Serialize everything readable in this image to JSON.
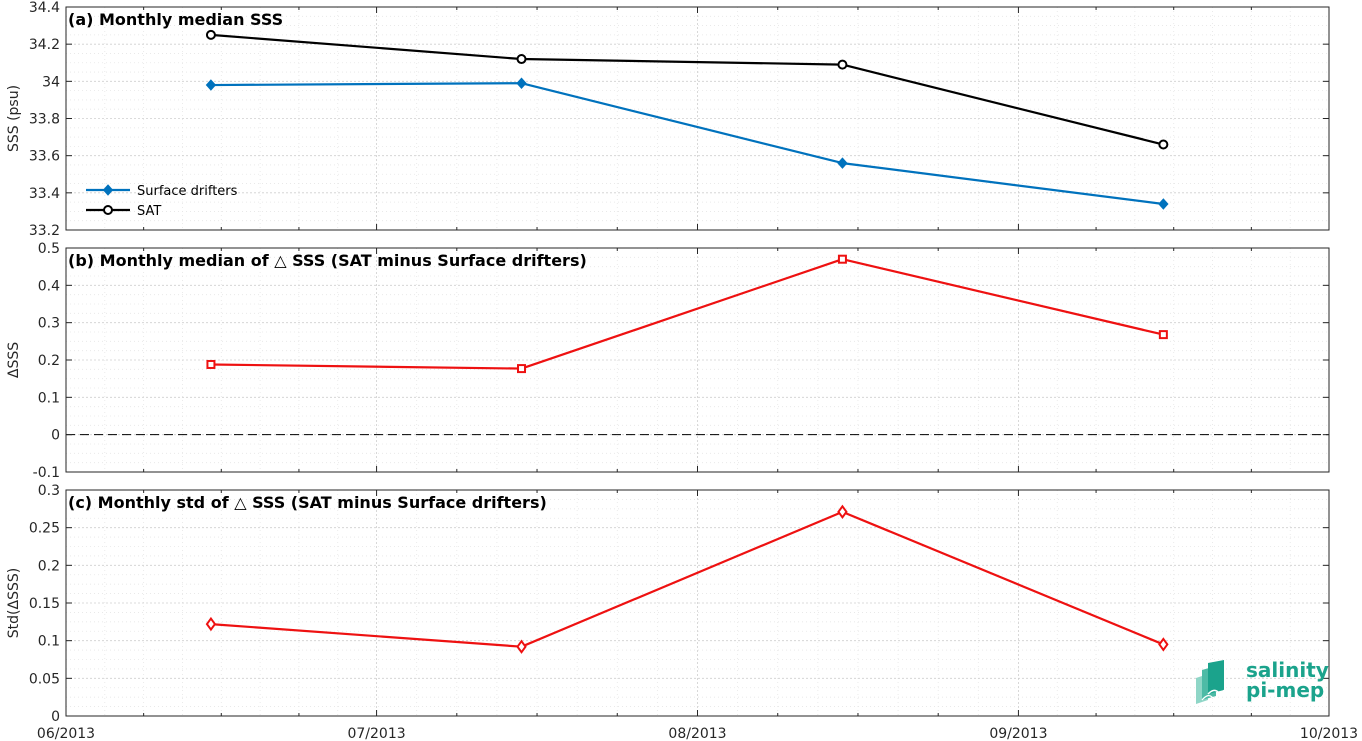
{
  "colors": {
    "surface_drifters": "#0072BD",
    "sat": "#000000",
    "delta": "#EE1111",
    "logo": "#1BA38C",
    "grid": "#d9d9d9"
  },
  "x_axis": {
    "range": [
      "2013-06-01",
      "2013-10-01"
    ],
    "major_ticks": [
      "2013-06-01",
      "2013-07-01",
      "2013-08-01",
      "2013-09-01",
      "2013-10-01"
    ],
    "tick_labels": [
      "06/2013",
      "07/2013",
      "08/2013",
      "09/2013",
      "10/2013"
    ]
  },
  "chart_data": [
    {
      "type": "line",
      "title": "(a) Monthly median SSS",
      "ylabel": "SSS (psu)",
      "ylim": [
        33.2,
        34.4
      ],
      "yticks": [
        33.2,
        33.4,
        33.6,
        33.8,
        34,
        34.2,
        34.4
      ],
      "ytick_labels": [
        "33.2",
        "33.4",
        "33.6",
        "33.8",
        "34",
        "34.2",
        "34.4"
      ],
      "x": [
        "2013-06-15",
        "2013-07-15",
        "2013-08-15",
        "2013-09-15"
      ],
      "grid": true,
      "legend_position": "bottom-left",
      "series": [
        {
          "name": "Surface drifters",
          "values": [
            33.98,
            33.99,
            33.56,
            33.34
          ],
          "color": "#0072BD",
          "marker": "diamond-filled"
        },
        {
          "name": "SAT",
          "values": [
            34.25,
            34.12,
            34.09,
            33.66
          ],
          "color": "#000000",
          "marker": "circle-open"
        }
      ]
    },
    {
      "type": "line",
      "title": "(b) Monthly median of △ SSS (SAT minus Surface drifters)",
      "ylabel": "ΔSSS",
      "ylim": [
        -0.1,
        0.5
      ],
      "yticks": [
        -0.1,
        0,
        0.1,
        0.2,
        0.3,
        0.4,
        0.5
      ],
      "ytick_labels": [
        "-0.1",
        "0",
        "0.1",
        "0.2",
        "0.3",
        "0.4",
        "0.5"
      ],
      "x": [
        "2013-06-15",
        "2013-07-15",
        "2013-08-15",
        "2013-09-15"
      ],
      "grid": true,
      "reference_line": 0,
      "series": [
        {
          "values": [
            0.188,
            0.177,
            0.47,
            0.268
          ],
          "color": "#EE1111",
          "marker": "square-open"
        }
      ]
    },
    {
      "type": "line",
      "title": "(c) Monthly std of △ SSS (SAT minus Surface drifters)",
      "ylabel": "Std(ΔSSS)",
      "ylim": [
        0,
        0.3
      ],
      "yticks": [
        0,
        0.05,
        0.1,
        0.15,
        0.2,
        0.25,
        0.3
      ],
      "ytick_labels": [
        "0",
        "0.05",
        "0.1",
        "0.15",
        "0.2",
        "0.25",
        "0.3"
      ],
      "x": [
        "2013-06-15",
        "2013-07-15",
        "2013-08-15",
        "2013-09-15"
      ],
      "grid": true,
      "series": [
        {
          "values": [
            0.122,
            0.092,
            0.271,
            0.095
          ],
          "color": "#EE1111",
          "marker": "diamond-open"
        }
      ]
    }
  ],
  "logo": {
    "line1": "salinity",
    "line2": "pi-mep"
  }
}
